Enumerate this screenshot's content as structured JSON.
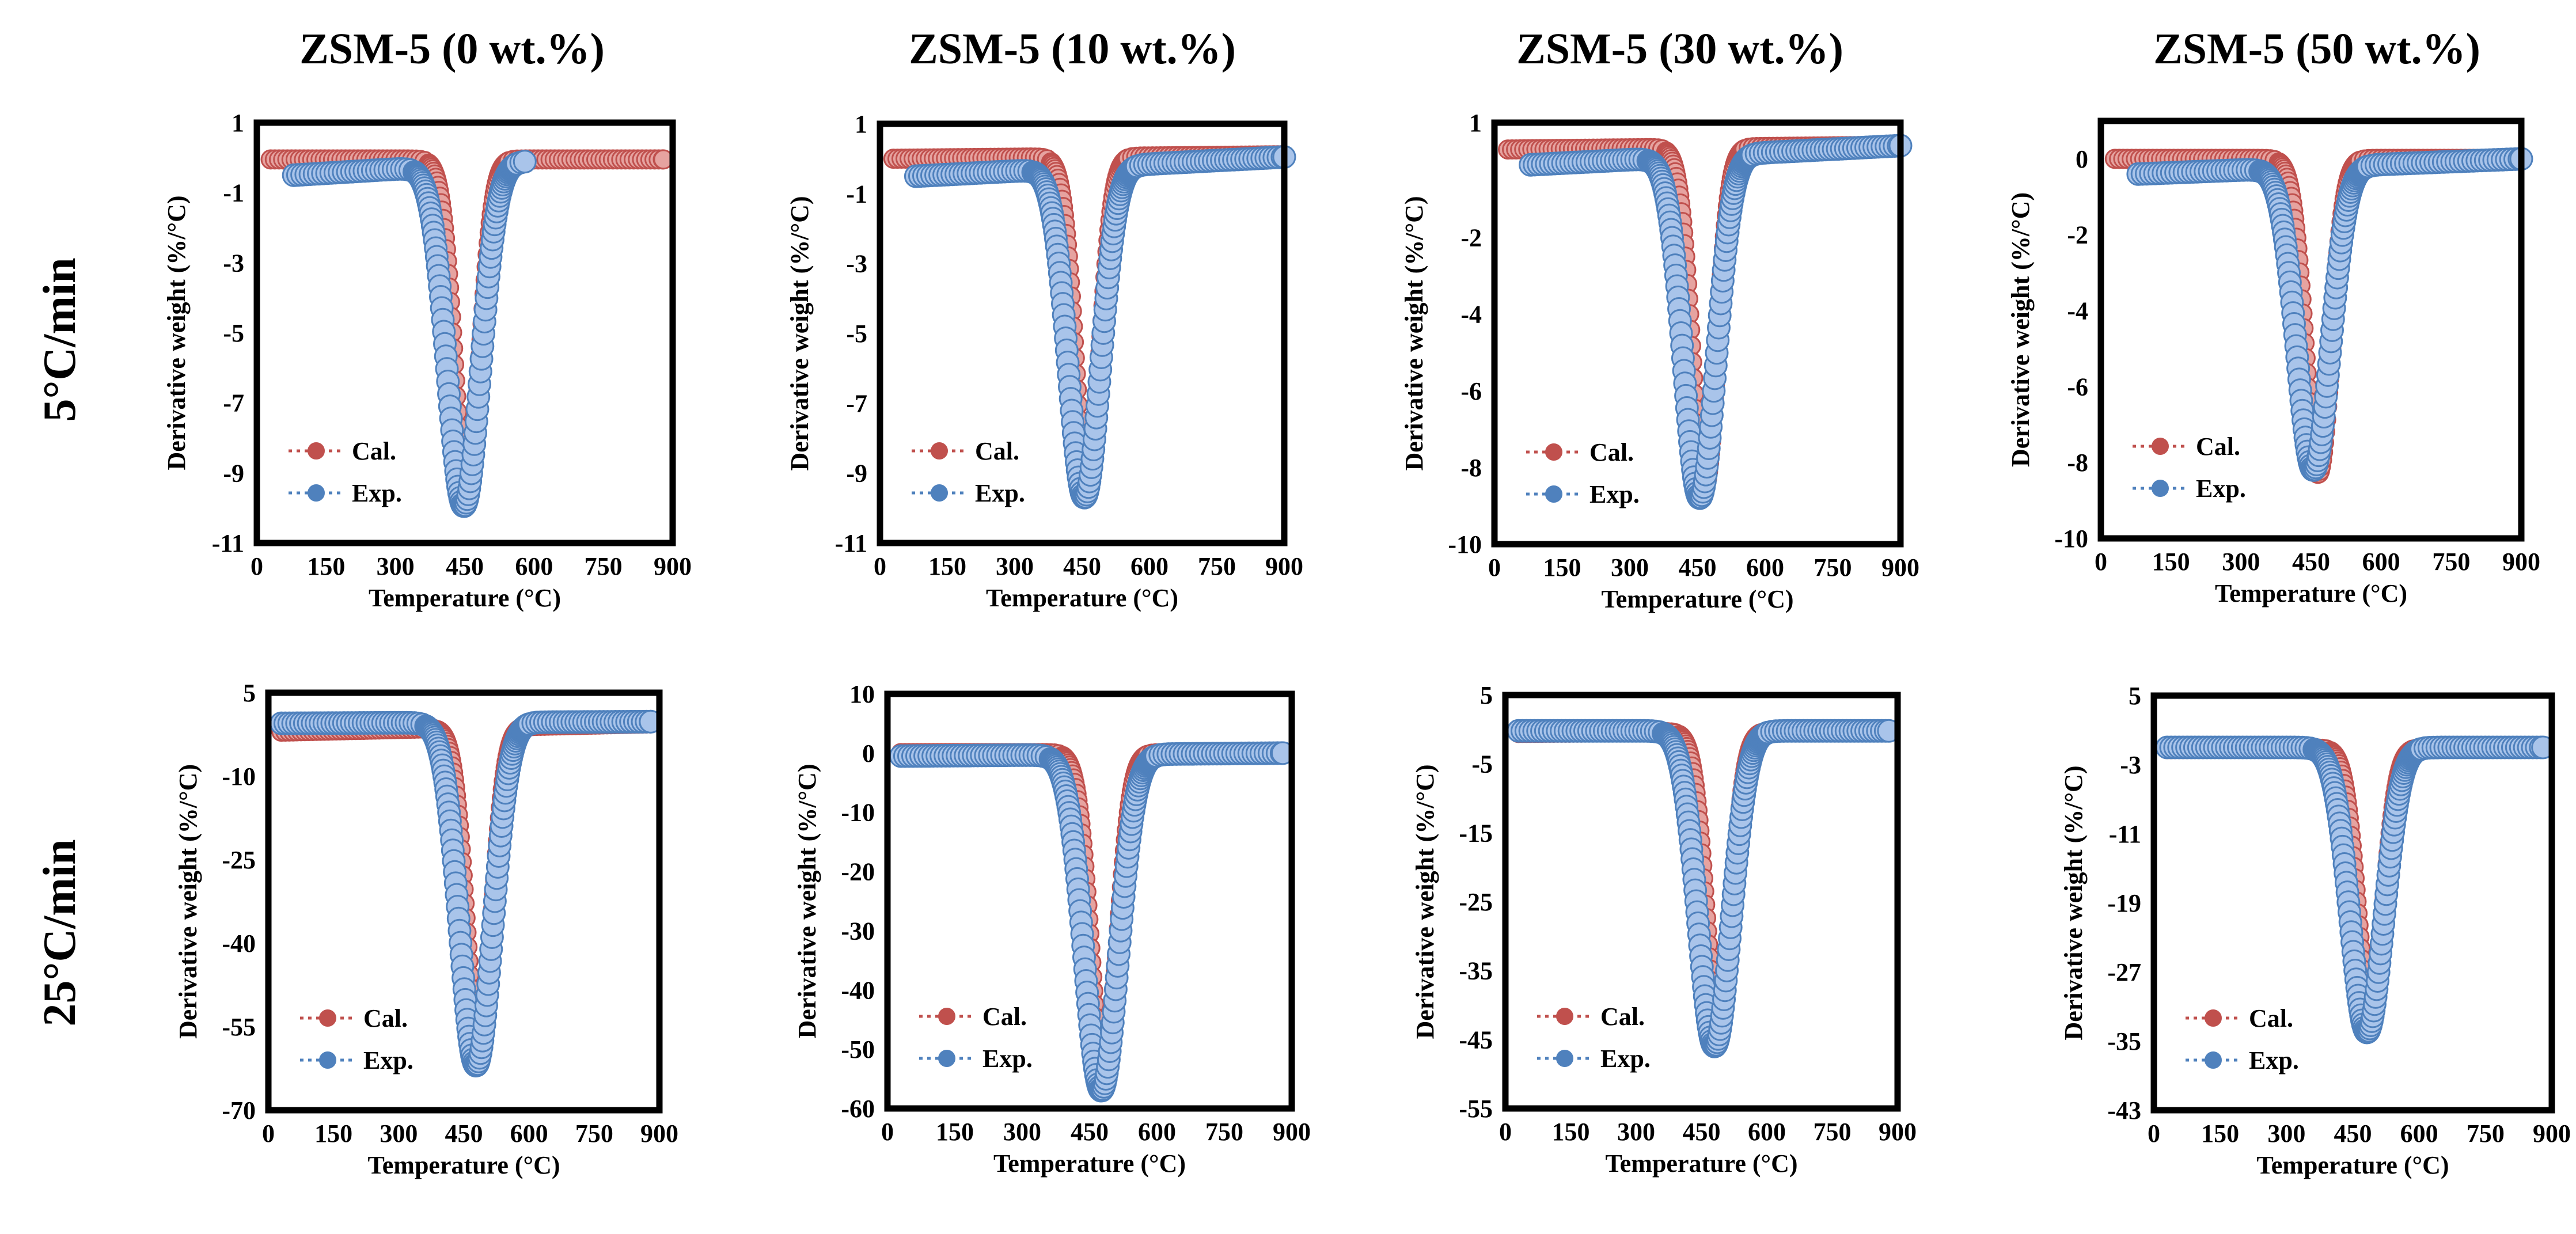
{
  "figure": {
    "column_titles": [
      "ZSM-5 (0 wt.%)",
      "ZSM-5 (10 wt.%)",
      "ZSM-5 (30 wt.%)",
      "ZSM-5 (50 wt.%)"
    ],
    "row_labels": [
      "5°C/min",
      "25°C/min"
    ],
    "colors": {
      "cal": "#c0504d",
      "cal_fill": "#e6a3a0",
      "exp": "#4f81bd",
      "exp_fill": "#a9c4ea"
    }
  },
  "chart_data": [
    {
      "type": "scatter",
      "id": "r1c1",
      "xlabel": "Temperature (°C)",
      "ylabel": "Derivative weight (%/°C)",
      "xlim": [
        0,
        900
      ],
      "ylim": [
        -11,
        1
      ],
      "xticks": [
        "0",
        "150",
        "300",
        "450",
        "600",
        "750",
        "900"
      ],
      "yticks": [
        "1",
        "-1",
        "-3",
        "-5",
        "-7",
        "-9",
        "-11"
      ],
      "legend": [
        "Cal.",
        "Exp."
      ],
      "series": [
        {
          "name": "Cal.",
          "x_start": 30,
          "x_end": 880,
          "baseline_start": -0.05,
          "baseline_end": -0.05,
          "peak_x": 455,
          "peak_y": -9.7,
          "width": 28
        },
        {
          "name": "Exp.",
          "x_start": 80,
          "x_end": 580,
          "baseline_start": -0.5,
          "baseline_end": -0.1,
          "peak_x": 448,
          "peak_y": -9.95,
          "width": 36
        }
      ]
    },
    {
      "type": "scatter",
      "id": "r1c2",
      "xlabel": "Temperature (°C)",
      "ylabel": "Derivative weight (%/°C)",
      "xlim": [
        0,
        900
      ],
      "ylim": [
        -11,
        1
      ],
      "xticks": [
        "0",
        "150",
        "300",
        "450",
        "600",
        "750",
        "900"
      ],
      "yticks": [
        "1",
        "-1",
        "-3",
        "-5",
        "-7",
        "-9",
        "-11"
      ],
      "legend": [
        "Cal.",
        "Exp."
      ],
      "series": [
        {
          "name": "Cal.",
          "x_start": 30,
          "x_end": 900,
          "baseline_start": 0.0,
          "baseline_end": 0.1,
          "peak_x": 462,
          "peak_y": -9.5,
          "width": 28
        },
        {
          "name": "Exp.",
          "x_start": 80,
          "x_end": 900,
          "baseline_start": -0.5,
          "baseline_end": 0.05,
          "peak_x": 455,
          "peak_y": -9.7,
          "width": 36
        }
      ]
    },
    {
      "type": "scatter",
      "id": "r1c3",
      "xlabel": "Temperature (°C)",
      "ylabel": "Derivative weight (%/°C)",
      "xlim": [
        0,
        900
      ],
      "ylim": [
        -10,
        1
      ],
      "xticks": [
        "0",
        "150",
        "300",
        "450",
        "600",
        "750",
        "900"
      ],
      "yticks": [
        "1",
        "-2",
        "-4",
        "-6",
        "-8",
        "-10"
      ],
      "legend": [
        "Cal.",
        "Exp."
      ],
      "series": [
        {
          "name": "Cal.",
          "x_start": 30,
          "x_end": 900,
          "baseline_start": 0.3,
          "baseline_end": 0.4,
          "peak_x": 465,
          "peak_y": -8.5,
          "width": 28
        },
        {
          "name": "Exp.",
          "x_start": 80,
          "x_end": 900,
          "baseline_start": -0.1,
          "baseline_end": 0.4,
          "peak_x": 455,
          "peak_y": -8.8,
          "width": 36
        }
      ]
    },
    {
      "type": "scatter",
      "id": "r1c4",
      "xlabel": "Temperature (°C)",
      "ylabel": "Derivative weight (%/°C)",
      "xlim": [
        0,
        900
      ],
      "ylim": [
        -10,
        1
      ],
      "xticks": [
        "0",
        "150",
        "300",
        "450",
        "600",
        "750",
        "900"
      ],
      "yticks": [
        "0",
        "-2",
        "-4",
        "-6",
        "-8",
        "-10"
      ],
      "legend": [
        "Cal.",
        "Exp."
      ],
      "series": [
        {
          "name": "Cal.",
          "x_start": 30,
          "x_end": 900,
          "baseline_start": 0.0,
          "baseline_end": 0.0,
          "peak_x": 465,
          "peak_y": -8.3,
          "width": 28
        },
        {
          "name": "Exp.",
          "x_start": 80,
          "x_end": 900,
          "baseline_start": -0.4,
          "baseline_end": 0.0,
          "peak_x": 455,
          "peak_y": -8.2,
          "width": 36
        }
      ]
    },
    {
      "type": "scatter",
      "id": "r2c1",
      "xlabel": "Temperature (°C)",
      "ylabel": "Derivative weight (%/°C)",
      "xlim": [
        0,
        900
      ],
      "ylim": [
        -70,
        5
      ],
      "xticks": [
        "0",
        "150",
        "300",
        "450",
        "600",
        "750",
        "900"
      ],
      "yticks": [
        "5",
        "-10",
        "-25",
        "-40",
        "-55",
        "-70"
      ],
      "legend": [
        "Cal.",
        "Exp."
      ],
      "series": [
        {
          "name": "Cal.",
          "x_start": 30,
          "x_end": 880,
          "baseline_start": -2.0,
          "baseline_end": -0.5,
          "peak_x": 485,
          "peak_y": -60,
          "width": 30
        },
        {
          "name": "Exp.",
          "x_start": 30,
          "x_end": 880,
          "baseline_start": -0.5,
          "baseline_end": -0.2,
          "peak_x": 478,
          "peak_y": -62,
          "width": 38
        }
      ]
    },
    {
      "type": "scatter",
      "id": "r2c2",
      "xlabel": "Temperature (°C)",
      "ylabel": "Derivative weight (%/°C)",
      "xlim": [
        0,
        900
      ],
      "ylim": [
        -60,
        10
      ],
      "xticks": [
        "0",
        "150",
        "300",
        "450",
        "600",
        "750",
        "900"
      ],
      "yticks": [
        "10",
        "0",
        "-10",
        "-20",
        "-30",
        "-40",
        "-50",
        "-60"
      ],
      "legend": [
        "Cal.",
        "Exp."
      ],
      "series": [
        {
          "name": "Cal.",
          "x_start": 30,
          "x_end": 880,
          "baseline_start": 0.0,
          "baseline_end": 0.0,
          "peak_x": 482,
          "peak_y": -55,
          "width": 30
        },
        {
          "name": "Exp.",
          "x_start": 30,
          "x_end": 880,
          "baseline_start": -0.5,
          "baseline_end": 0.0,
          "peak_x": 476,
          "peak_y": -57,
          "width": 38
        }
      ]
    },
    {
      "type": "scatter",
      "id": "r2c3",
      "xlabel": "Temperature (°C)",
      "ylabel": "Derivative weight (%/°C)",
      "xlim": [
        0,
        900
      ],
      "ylim": [
        -55,
        5
      ],
      "xticks": [
        "0",
        "150",
        "300",
        "450",
        "600",
        "750",
        "900"
      ],
      "yticks": [
        "5",
        "-5",
        "-15",
        "-25",
        "-35",
        "-45",
        "-55"
      ],
      "legend": [
        "Cal.",
        "Exp."
      ],
      "series": [
        {
          "name": "Cal.",
          "x_start": 30,
          "x_end": 880,
          "baseline_start": -0.5,
          "baseline_end": -0.2,
          "peak_x": 490,
          "peak_y": -44,
          "width": 30
        },
        {
          "name": "Exp.",
          "x_start": 30,
          "x_end": 880,
          "baseline_start": -0.2,
          "baseline_end": -0.2,
          "peak_x": 480,
          "peak_y": -46,
          "width": 38
        }
      ]
    },
    {
      "type": "scatter",
      "id": "r2c4",
      "xlabel": "Temperature (°C)",
      "ylabel": "Derivative weight (%/°C)",
      "xlim": [
        0,
        900
      ],
      "ylim": [
        -43,
        5
      ],
      "xticks": [
        "0",
        "150",
        "300",
        "450",
        "600",
        "750",
        "900"
      ],
      "yticks": [
        "5",
        "-3",
        "-11",
        "-19",
        "-27",
        "-35",
        "-43"
      ],
      "legend": [
        "Cal.",
        "Exp."
      ],
      "series": [
        {
          "name": "Cal.",
          "x_start": 30,
          "x_end": 880,
          "baseline_start": -1.2,
          "baseline_end": -1.0,
          "peak_x": 490,
          "peak_y": -32,
          "width": 30
        },
        {
          "name": "Exp.",
          "x_start": 30,
          "x_end": 880,
          "baseline_start": -1.0,
          "baseline_end": -1.0,
          "peak_x": 482,
          "peak_y": -34,
          "width": 38
        }
      ]
    }
  ]
}
